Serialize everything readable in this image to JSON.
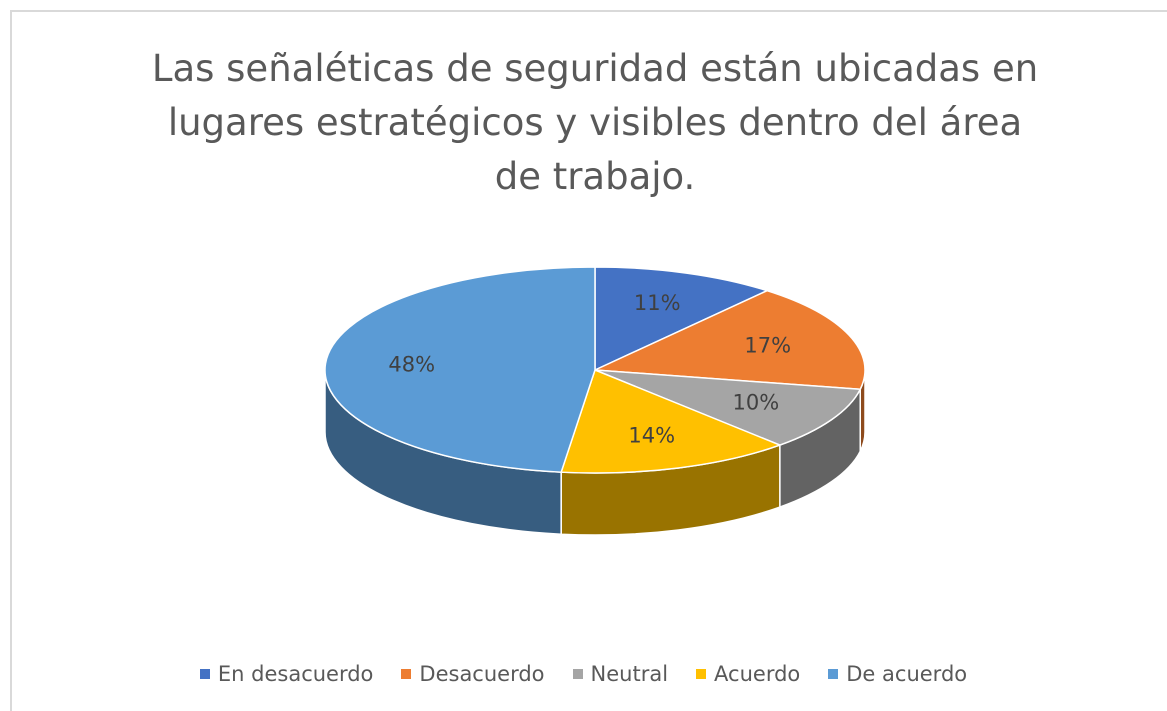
{
  "chart_data": {
    "type": "pie",
    "title": "Las señaléticas de seguridad están ubicadas en lugares estratégicos y visibles dentro del área de trabajo.",
    "categories": [
      "En desacuerdo",
      "Desacuerdo",
      "Neutral",
      "Acuerdo",
      "De acuerdo"
    ],
    "values": [
      11,
      17,
      10,
      14,
      48
    ],
    "value_labels": [
      "11%",
      "17%",
      "10%",
      "14%",
      "48%"
    ],
    "colors": [
      "#4472c4",
      "#ed7d31",
      "#a5a5a5",
      "#ffc000",
      "#5b9bd5"
    ],
    "legend": "bottom"
  }
}
